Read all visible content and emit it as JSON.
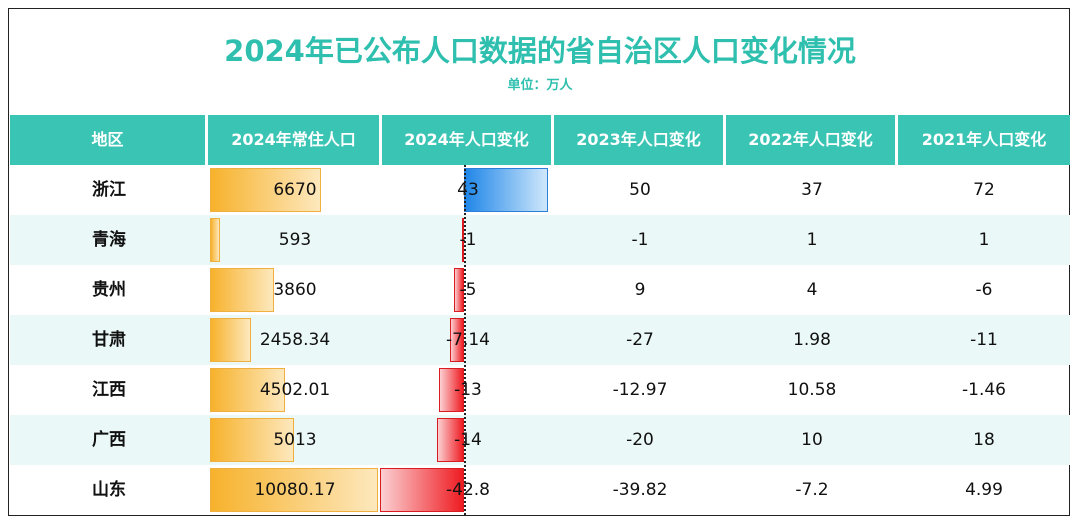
{
  "title": "2024年已公布人口数据的省自治区人口变化情况",
  "subtitle": "单位：万人",
  "columns": [
    "地区",
    "2024年常住人口",
    "2024年人口变化",
    "2023年人口变化",
    "2022年人口变化",
    "2021年人口变化"
  ],
  "colors": {
    "header_bg": "#3ac4b4",
    "title": "#2ebfae",
    "alt_row": "#eaf8f7",
    "pop_bar": "#f7b22c",
    "pos_bar": "#1f86e8",
    "neg_bar": "#ee1c22"
  },
  "chart_data": {
    "type": "table",
    "rows": [
      {
        "region": "浙江",
        "pop2024": "6670",
        "chg2024": "43",
        "chg2023": "50",
        "chg2022": "37",
        "chg2021": "72"
      },
      {
        "region": "青海",
        "pop2024": "593",
        "chg2024": "-1",
        "chg2023": "-1",
        "chg2022": "1",
        "chg2021": "1"
      },
      {
        "region": "贵州",
        "pop2024": "3860",
        "chg2024": "-5",
        "chg2023": "9",
        "chg2022": "4",
        "chg2021": "-6"
      },
      {
        "region": "甘肃",
        "pop2024": "2458.34",
        "chg2024": "-7.14",
        "chg2023": "-27",
        "chg2022": "1.98",
        "chg2021": "-11"
      },
      {
        "region": "江西",
        "pop2024": "4502.01",
        "chg2024": "-13",
        "chg2023": "-12.97",
        "chg2022": "10.58",
        "chg2021": "-1.46"
      },
      {
        "region": "广西",
        "pop2024": "5013",
        "chg2024": "-14",
        "chg2023": "-20",
        "chg2022": "10",
        "chg2021": "18"
      },
      {
        "region": "山东",
        "pop2024": "10080.17",
        "chg2024": "-42.8",
        "chg2023": "-39.82",
        "chg2022": "-7.2",
        "chg2021": "4.99"
      }
    ]
  }
}
